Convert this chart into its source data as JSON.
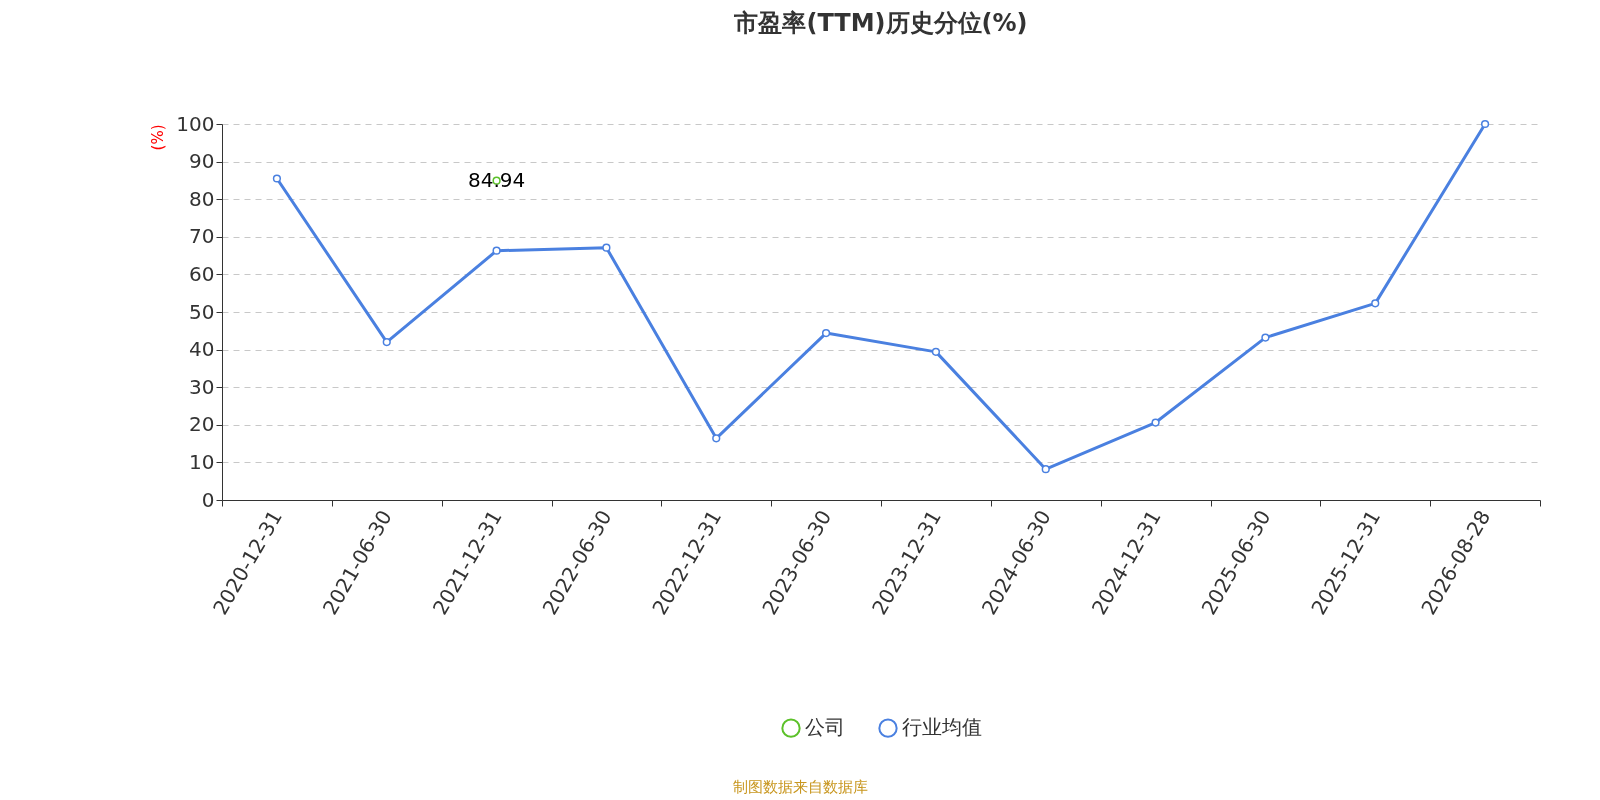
{
  "chart_data": {
    "type": "line",
    "title": "市盈率(TTM)历史分位(%)",
    "ylabel": "(%)",
    "categories": [
      "2020-12-31",
      "2021-06-30",
      "2021-12-31",
      "2022-06-30",
      "2022-12-31",
      "2023-06-30",
      "2023-12-31",
      "2024-06-30",
      "2024-12-31",
      "2025-06-30",
      "2025-12-31",
      "2026-08-28"
    ],
    "series": [
      {
        "name": "公司",
        "color": "#5cc12a",
        "values": [
          null,
          null,
          84.94,
          null,
          null,
          null,
          null,
          null,
          null,
          null,
          null,
          null
        ],
        "value_labels": [
          null,
          null,
          "84.94",
          null,
          null,
          null,
          null,
          null,
          null,
          null,
          null,
          null
        ]
      },
      {
        "name": "行业均值",
        "color": "#4a80e0",
        "values": [
          85.5,
          42,
          66.3,
          67.1,
          16.4,
          44.4,
          39.4,
          8.2,
          20.6,
          43.2,
          52.3,
          100
        ]
      }
    ],
    "ylim": [
      0,
      100
    ],
    "yticks": [
      0,
      10,
      20,
      30,
      40,
      50,
      60,
      70,
      80,
      90,
      100
    ],
    "grid": "y",
    "legend": "bottom",
    "marker": "circle",
    "line_style": "solid",
    "annotations": [
      "制图数据来自数据库"
    ]
  }
}
